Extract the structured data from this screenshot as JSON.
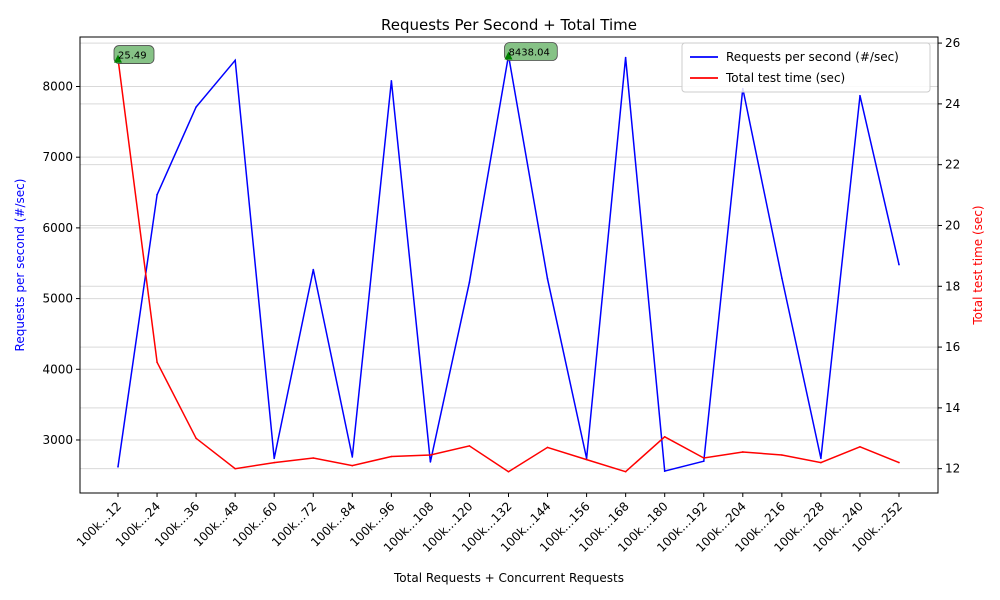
{
  "chart_data": {
    "type": "line",
    "title": "Requests Per Second + Total Time",
    "xlabel": "Total Requests + Concurrent Requests",
    "ylabel_left": "Requests per second (#/sec)",
    "ylabel_right": "Total test time (sec)",
    "categories": [
      "100k…12",
      "100k…24",
      "100k…36",
      "100k…48",
      "100k…60",
      "100k…72",
      "100k…84",
      "100k…96",
      "100k…108",
      "100k…120",
      "100k…132",
      "100k…144",
      "100k…156",
      "100k…168",
      "100k…180",
      "100k…192",
      "100k…204",
      "100k…216",
      "100k…228",
      "100k…240",
      "100k…252"
    ],
    "y_left_range": [
      2250,
      8700
    ],
    "y_left_ticks": [
      3000,
      4000,
      5000,
      6000,
      7000,
      8000
    ],
    "y_right_range": [
      11.2,
      26.2
    ],
    "y_right_ticks": [
      12,
      14,
      16,
      18,
      20,
      22,
      24,
      26
    ],
    "grid": "horizontal",
    "legend_position": "top-right",
    "series": [
      {
        "name": "Requests per second (#/sec)",
        "axis": "left",
        "color": "#0000ff",
        "values": [
          2620,
          6470,
          7710,
          8370,
          2740,
          5410,
          2760,
          8080,
          2690,
          5230,
          8438.04,
          5280,
          2740,
          8410,
          2560,
          2700,
          7970,
          5290,
          2740,
          7870,
          5480
        ]
      },
      {
        "name": "Total test time (sec)",
        "axis": "right",
        "color": "#ff0000",
        "values": [
          25.49,
          15.5,
          13.0,
          12.0,
          12.2,
          12.35,
          12.1,
          12.4,
          12.45,
          12.75,
          11.9,
          12.7,
          12.3,
          11.9,
          13.05,
          12.35,
          12.55,
          12.45,
          12.2,
          12.72,
          12.2
        ]
      }
    ],
    "annotations": [
      {
        "text": "25.49",
        "index": 0,
        "series": 1
      },
      {
        "text": "8438.04",
        "index": 10,
        "series": 0
      }
    ],
    "marker_color": "#008000",
    "annotation_bg": "#7fbf7f"
  }
}
